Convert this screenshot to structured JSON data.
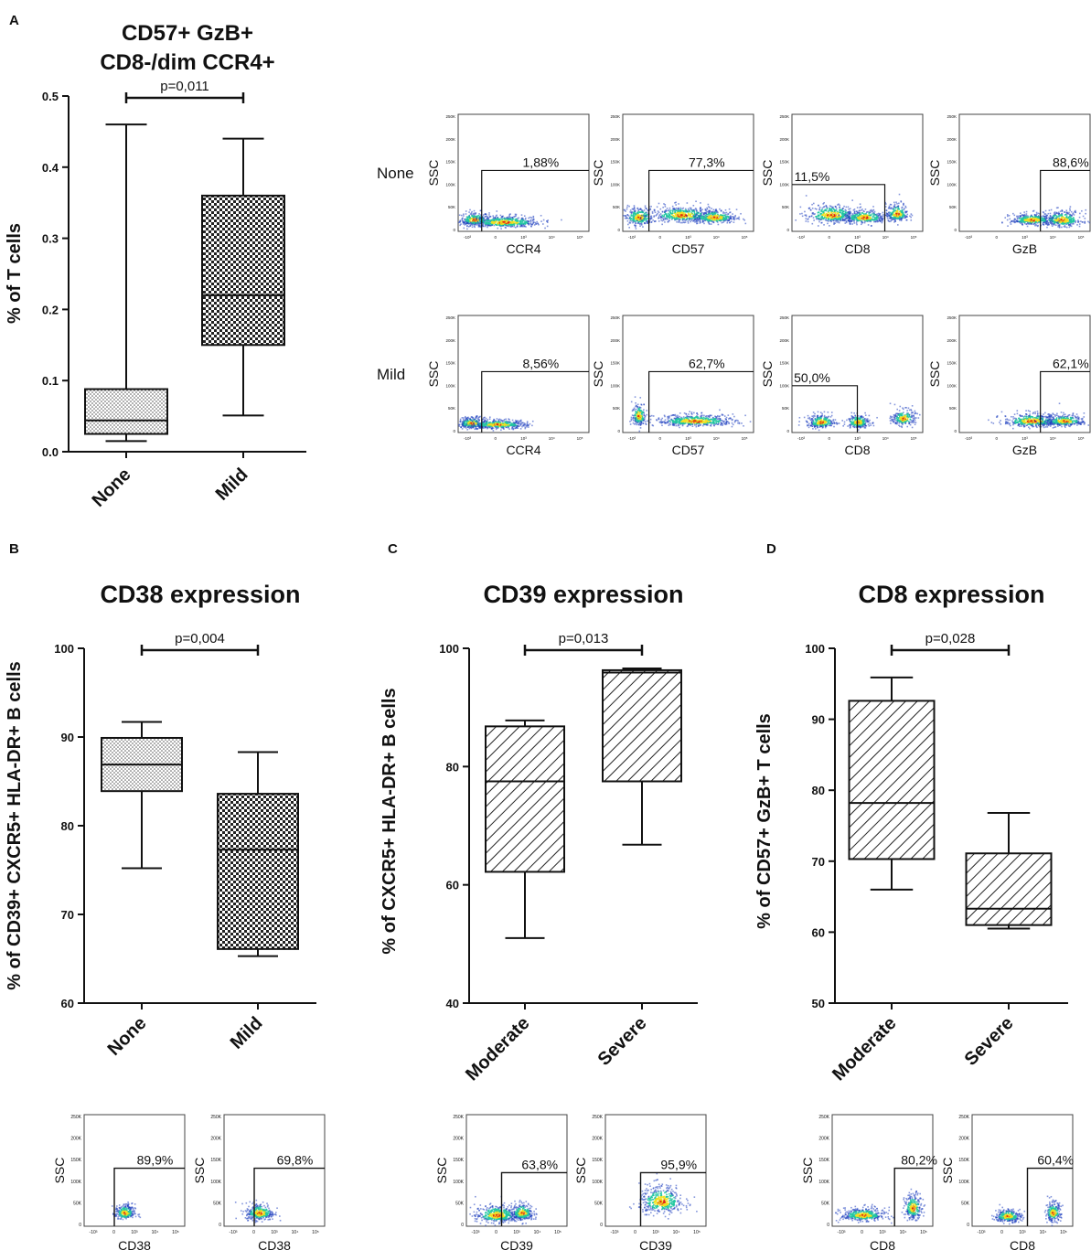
{
  "panel_letters": [
    "A",
    "B",
    "C",
    "D"
  ],
  "colors": {
    "axis": "#111111",
    "box_fill": "#ffffff",
    "density_low": "#1f3fbf",
    "density_mid": "#21c6a0",
    "density_high": "#f0e020",
    "density_peak": "#e02010"
  },
  "chart_data": [
    {
      "id": "A",
      "type": "box",
      "title": [
        "CD57+ GzB+",
        "CD8-/dim CCR4+"
      ],
      "ylabel": "% of T cells",
      "ylim": [
        0,
        0.5
      ],
      "yticks": [
        "0.0",
        "0.1",
        "0.2",
        "0.3",
        "0.4",
        "0.5"
      ],
      "categories": [
        "None",
        "Mild"
      ],
      "pattern": [
        "dots",
        "checker"
      ],
      "boxes": [
        {
          "min": 0.015,
          "q1": 0.025,
          "median": 0.044,
          "q3": 0.088,
          "max": 0.46
        },
        {
          "min": 0.051,
          "q1": 0.15,
          "median": 0.22,
          "q3": 0.36,
          "max": 0.44
        }
      ],
      "significance": "p=0,011"
    },
    {
      "id": "B",
      "type": "box",
      "title": [
        "CD38 expression"
      ],
      "ylabel": "% of CD39+ CXCR5+ HLA-DR+ B cells",
      "ylim": [
        60,
        100
      ],
      "yticks": [
        "60",
        "70",
        "80",
        "90",
        "100"
      ],
      "categories": [
        "None",
        "Mild"
      ],
      "pattern": [
        "dots",
        "checker"
      ],
      "boxes": [
        {
          "min": 75.2,
          "q1": 83.9,
          "median": 86.9,
          "q3": 89.9,
          "max": 91.7
        },
        {
          "min": 65.3,
          "q1": 66.1,
          "median": 77.3,
          "q3": 83.6,
          "max": 88.3
        }
      ],
      "significance": "p=0,004"
    },
    {
      "id": "C",
      "type": "box",
      "title": [
        "CD39 expression"
      ],
      "ylabel": "% of CXCR5+ HLA-DR+ B cells",
      "ylim": [
        40,
        100
      ],
      "yticks": [
        "40",
        "60",
        "80",
        "100"
      ],
      "categories": [
        "Moderate",
        "Severe"
      ],
      "pattern": [
        "hatch",
        "hatch"
      ],
      "boxes": [
        {
          "min": 51.0,
          "q1": 62.2,
          "median": 77.5,
          "q3": 86.8,
          "max": 87.8
        },
        {
          "min": 66.8,
          "q1": 77.5,
          "median": 95.9,
          "q3": 96.3,
          "max": 96.6
        }
      ],
      "significance": "p=0,013"
    },
    {
      "id": "D",
      "type": "box",
      "title": [
        "CD8 expression"
      ],
      "ylabel": "% of CD57+ GzB+ T cells",
      "ylim": [
        50,
        100
      ],
      "yticks": [
        "50",
        "60",
        "70",
        "80",
        "90",
        "100"
      ],
      "categories": [
        "Moderate",
        "Severe"
      ],
      "pattern": [
        "hatch",
        "hatch"
      ],
      "boxes": [
        {
          "min": 66.0,
          "q1": 70.3,
          "median": 78.2,
          "q3": 92.6,
          "max": 95.9
        },
        {
          "min": 60.5,
          "q1": 61.0,
          "median": 63.3,
          "q3": 71.1,
          "max": 76.8
        }
      ],
      "significance": "p=0,028"
    }
  ],
  "flow_plots": {
    "yaxis_label": "SSC",
    "yticks": [
      "0",
      "50K",
      "100K",
      "150K",
      "200K",
      "250K"
    ],
    "xticks": [
      "-10³",
      "0",
      "10³",
      "10⁴",
      "10⁵"
    ],
    "row_labels": [
      "None",
      "Mild"
    ],
    "panel_a": [
      [
        {
          "marker": "CCR4",
          "percent": "1,88%",
          "gate": [
            0.18,
            1.0,
            0.52
          ],
          "side": "right",
          "clusters": [
            [
              0.12,
              0.1,
              0.1,
              0.06
            ],
            [
              0.35,
              0.08,
              0.25,
              0.05
            ]
          ]
        },
        {
          "marker": "CD57",
          "percent": "77,3%",
          "gate": [
            0.2,
            1.0,
            0.52
          ],
          "side": "right",
          "clusters": [
            [
              0.12,
              0.12,
              0.1,
              0.08
            ],
            [
              0.45,
              0.14,
              0.22,
              0.07
            ],
            [
              0.7,
              0.12,
              0.15,
              0.06
            ]
          ]
        },
        {
          "marker": "CD8",
          "percent": "11,5%",
          "gate": [
            0.0,
            0.71,
            0.4
          ],
          "side": "left",
          "clusters": [
            [
              0.3,
              0.14,
              0.18,
              0.08
            ],
            [
              0.8,
              0.15,
              0.08,
              0.08
            ],
            [
              0.55,
              0.12,
              0.15,
              0.06
            ]
          ]
        },
        {
          "marker": "GzB",
          "percent": "88,6%",
          "gate": [
            0.62,
            1.0,
            0.52
          ],
          "side": "right",
          "clusters": [
            [
              0.78,
              0.1,
              0.14,
              0.07
            ],
            [
              0.55,
              0.1,
              0.15,
              0.05
            ]
          ]
        }
      ],
      [
        {
          "marker": "CCR4",
          "percent": "8,56%",
          "gate": [
            0.18,
            1.0,
            0.52
          ],
          "side": "right",
          "clusters": [
            [
              0.1,
              0.08,
              0.1,
              0.05
            ],
            [
              0.3,
              0.07,
              0.2,
              0.04
            ]
          ]
        },
        {
          "marker": "CD57",
          "percent": "62,7%",
          "gate": [
            0.2,
            1.0,
            0.52
          ],
          "side": "right",
          "clusters": [
            [
              0.12,
              0.14,
              0.05,
              0.1
            ],
            [
              0.55,
              0.1,
              0.28,
              0.05
            ]
          ]
        },
        {
          "marker": "CD8",
          "percent": "50,0%",
          "gate": [
            0.0,
            0.5,
            0.4
          ],
          "side": "left",
          "clusters": [
            [
              0.22,
              0.09,
              0.1,
              0.06
            ],
            [
              0.5,
              0.09,
              0.08,
              0.06
            ],
            [
              0.85,
              0.12,
              0.08,
              0.07
            ]
          ]
        },
        {
          "marker": "GzB",
          "percent": "62,1%",
          "gate": [
            0.62,
            1.0,
            0.52
          ],
          "side": "right",
          "clusters": [
            [
              0.55,
              0.1,
              0.2,
              0.06
            ],
            [
              0.8,
              0.1,
              0.14,
              0.05
            ]
          ]
        }
      ]
    ],
    "bottom": [
      {
        "marker": "CD38",
        "percent": "89,9%",
        "gate": [
          0.3,
          1.0,
          0.52
        ],
        "side": "right",
        "clusters": [
          [
            0.4,
            0.12,
            0.09,
            0.07
          ]
        ]
      },
      {
        "marker": "CD38",
        "percent": "69,8%",
        "gate": [
          0.3,
          1.0,
          0.52
        ],
        "side": "right",
        "clusters": [
          [
            0.35,
            0.12,
            0.13,
            0.08
          ]
        ]
      },
      {
        "marker": "CD39",
        "percent": "63,8%",
        "gate": [
          0.35,
          1.0,
          0.48
        ],
        "side": "right",
        "clusters": [
          [
            0.3,
            0.1,
            0.2,
            0.08
          ],
          [
            0.55,
            0.12,
            0.1,
            0.08
          ]
        ]
      },
      {
        "marker": "CD39",
        "percent": "95,9%",
        "gate": [
          0.35,
          1.0,
          0.48
        ],
        "side": "right",
        "clusters": [
          [
            0.55,
            0.22,
            0.2,
            0.13
          ]
        ]
      },
      {
        "marker": "CD8",
        "percent": "80,2%",
        "gate": [
          0.62,
          1.0,
          0.52
        ],
        "side": "right",
        "clusters": [
          [
            0.3,
            0.1,
            0.2,
            0.06
          ],
          [
            0.8,
            0.16,
            0.08,
            0.12
          ]
        ]
      },
      {
        "marker": "CD8",
        "percent": "60,4%",
        "gate": [
          0.55,
          1.0,
          0.52
        ],
        "side": "right",
        "clusters": [
          [
            0.35,
            0.09,
            0.12,
            0.06
          ],
          [
            0.8,
            0.12,
            0.07,
            0.09
          ]
        ]
      }
    ]
  }
}
